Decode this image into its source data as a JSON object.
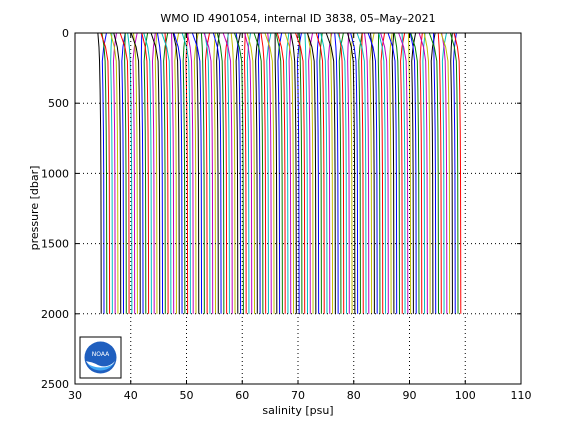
{
  "chart_data": {
    "type": "line",
    "title": "WMO ID 4901054, internal ID 3838, 05–May–2021",
    "xlabel": "salinity [psu]",
    "ylabel": "pressure [dbar]",
    "xlim": [
      30,
      110
    ],
    "ylim": [
      0,
      2500
    ],
    "y_reversed": true,
    "grid": true,
    "x_ticks": [
      30,
      40,
      50,
      60,
      70,
      80,
      90,
      100,
      110
    ],
    "y_ticks": [
      0,
      500,
      1000,
      1500,
      2000,
      2500
    ],
    "profile_offset": 0.5,
    "profile_count": 130,
    "first_profile_salinity": [
      34.1,
      34.2,
      34.3,
      34.4,
      34.5,
      34.6,
      34.65,
      34.68,
      34.7
    ],
    "pressure_levels": [
      0,
      50,
      100,
      200,
      400,
      700,
      1000,
      1500,
      2000
    ],
    "series_colors": [
      "#000000",
      "#0000ff",
      "#008000",
      "#ff0000",
      "#00bfbf",
      "#bf00bf",
      "#bfbf00"
    ]
  },
  "logo": {
    "name": "NOAA",
    "text": "NOAA"
  }
}
